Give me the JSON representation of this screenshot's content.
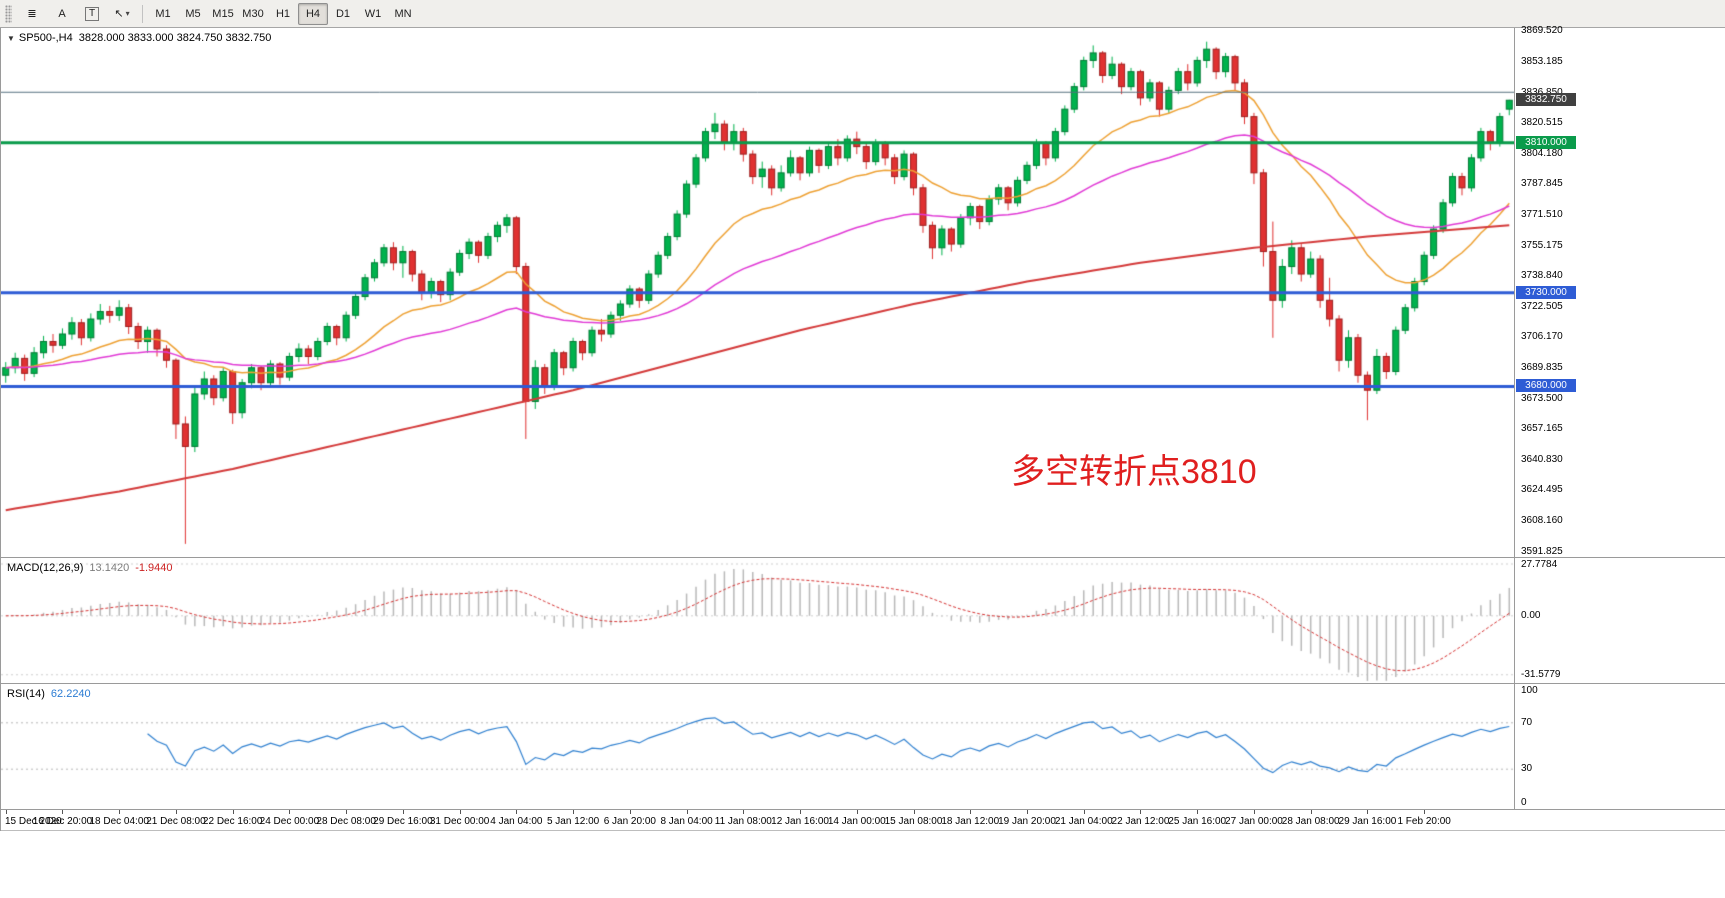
{
  "toolbar": {
    "tools": [
      {
        "id": "chart-list",
        "icon": "list-icon",
        "glyph": "≣"
      },
      {
        "id": "cursor",
        "icon": "cursor-a-icon",
        "glyph": "A"
      },
      {
        "id": "text",
        "icon": "text-box-icon",
        "glyph": "T",
        "boxed": true
      },
      {
        "id": "arrow-tool",
        "icon": "arrow-tool-icon",
        "glyph": "↖",
        "caret": "▾"
      }
    ],
    "timeframes": [
      "M1",
      "M5",
      "M15",
      "M30",
      "H1",
      "H4",
      "D1",
      "W1",
      "MN"
    ],
    "active_timeframe": "H4"
  },
  "main_panel": {
    "collapse_icon": "▼",
    "symbol_label": "SP500-,H4",
    "ohlc": "3828.000 3833.000 3824.750 3832.750",
    "annotation": {
      "text": "多空转折点3810",
      "color": "#e01f1f"
    }
  },
  "macd_panel": {
    "name": "MACD(12,26,9)",
    "main_value": "13.1420",
    "signal_value": "-1.9440"
  },
  "rsi_panel": {
    "name": "RSI(14)",
    "value": "62.2240"
  },
  "chart_data": {
    "type": "candlestick",
    "symbol": "SP500-",
    "timeframe": "H4",
    "current_bar": {
      "open": 3828.0,
      "high": 3833.0,
      "low": 3824.75,
      "close": 3832.75
    },
    "up_color": "#00b24d",
    "down_color": "#e03131",
    "y_axis": {
      "min": 3589.0,
      "max": 3871.3,
      "tick_labels": [
        "3869.520",
        "3853.185",
        "3836.850",
        "3820.515",
        "3804.180",
        "3787.845",
        "3771.510",
        "3755.175",
        "3738.840",
        "3722.505",
        "3706.170",
        "3689.835",
        "3673.500",
        "3657.165",
        "3640.830",
        "3624.495",
        "3608.160",
        "3591.825"
      ],
      "tick_values": [
        3869.52,
        3853.185,
        3836.85,
        3820.515,
        3804.18,
        3787.845,
        3771.51,
        3755.175,
        3738.84,
        3722.505,
        3706.17,
        3689.835,
        3673.5,
        3657.165,
        3640.83,
        3624.495,
        3608.16,
        3591.825
      ]
    },
    "x_labels": [
      "15 Dec 2020",
      "16 Dec 20:00",
      "18 Dec 04:00",
      "21 Dec 08:00",
      "22 Dec 16:00",
      "24 Dec 00:00",
      "28 Dec 08:00",
      "29 Dec 16:00",
      "31 Dec 00:00",
      "4 Jan 04:00",
      "5 Jan 12:00",
      "6 Jan 20:00",
      "8 Jan 04:00",
      "11 Jan 08:00",
      "12 Jan 16:00",
      "14 Jan 00:00",
      "15 Jan 08:00",
      "18 Jan 12:00",
      "19 Jan 20:00",
      "21 Jan 04:00",
      "22 Jan 12:00",
      "25 Jan 16:00",
      "27 Jan 00:00",
      "28 Jan 08:00",
      "29 Jan 16:00",
      "1 Feb 20:00"
    ],
    "x_label_every": 6,
    "candles": [
      [
        3686,
        3693,
        3682,
        3690
      ],
      [
        3690,
        3698,
        3687,
        3695
      ],
      [
        3695,
        3697,
        3683,
        3687
      ],
      [
        3687,
        3701,
        3685,
        3698
      ],
      [
        3698,
        3707,
        3695,
        3704
      ],
      [
        3704,
        3708,
        3698,
        3702
      ],
      [
        3702,
        3711,
        3700,
        3708
      ],
      [
        3708,
        3717,
        3705,
        3714
      ],
      [
        3714,
        3716,
        3702,
        3706
      ],
      [
        3706,
        3719,
        3704,
        3716
      ],
      [
        3716,
        3724,
        3713,
        3720
      ],
      [
        3720,
        3723,
        3714,
        3718
      ],
      [
        3718,
        3726,
        3715,
        3722
      ],
      [
        3722,
        3724,
        3708,
        3712
      ],
      [
        3712,
        3714,
        3700,
        3704
      ],
      [
        3704,
        3712,
        3698,
        3710
      ],
      [
        3710,
        3711,
        3696,
        3700
      ],
      [
        3700,
        3702,
        3690,
        3694
      ],
      [
        3694,
        3695,
        3652,
        3660
      ],
      [
        3660,
        3664,
        3596,
        3648
      ],
      [
        3648,
        3680,
        3645,
        3676
      ],
      [
        3676,
        3688,
        3673,
        3684
      ],
      [
        3684,
        3686,
        3670,
        3674
      ],
      [
        3674,
        3690,
        3672,
        3688
      ],
      [
        3688,
        3689,
        3660,
        3666
      ],
      [
        3666,
        3684,
        3663,
        3682
      ],
      [
        3682,
        3692,
        3679,
        3690
      ],
      [
        3690,
        3691,
        3678,
        3682
      ],
      [
        3682,
        3694,
        3680,
        3692
      ],
      [
        3692,
        3693,
        3681,
        3685
      ],
      [
        3685,
        3698,
        3683,
        3696
      ],
      [
        3696,
        3703,
        3693,
        3700
      ],
      [
        3700,
        3702,
        3692,
        3696
      ],
      [
        3696,
        3706,
        3694,
        3704
      ],
      [
        3704,
        3714,
        3702,
        3712
      ],
      [
        3712,
        3713,
        3702,
        3706
      ],
      [
        3706,
        3720,
        3704,
        3718
      ],
      [
        3718,
        3730,
        3716,
        3728
      ],
      [
        3728,
        3740,
        3726,
        3738
      ],
      [
        3738,
        3748,
        3736,
        3746
      ],
      [
        3746,
        3756,
        3744,
        3754
      ],
      [
        3754,
        3757,
        3742,
        3746
      ],
      [
        3746,
        3755,
        3738,
        3752
      ],
      [
        3752,
        3753,
        3736,
        3740
      ],
      [
        3740,
        3742,
        3726,
        3730
      ],
      [
        3730,
        3738,
        3727,
        3736
      ],
      [
        3736,
        3737,
        3725,
        3729
      ],
      [
        3729,
        3743,
        3726,
        3741
      ],
      [
        3741,
        3753,
        3739,
        3751
      ],
      [
        3751,
        3759,
        3748,
        3757
      ],
      [
        3757,
        3758,
        3746,
        3750
      ],
      [
        3750,
        3762,
        3748,
        3760
      ],
      [
        3760,
        3768,
        3757,
        3766
      ],
      [
        3766,
        3772,
        3762,
        3770
      ],
      [
        3770,
        3771,
        3740,
        3744
      ],
      [
        3744,
        3746,
        3652,
        3672
      ],
      [
        3672,
        3694,
        3668,
        3690
      ],
      [
        3690,
        3692,
        3676,
        3680
      ],
      [
        3680,
        3700,
        3678,
        3698
      ],
      [
        3698,
        3699,
        3686,
        3690
      ],
      [
        3690,
        3706,
        3688,
        3704
      ],
      [
        3704,
        3705,
        3694,
        3698
      ],
      [
        3698,
        3712,
        3696,
        3710
      ],
      [
        3710,
        3716,
        3704,
        3708
      ],
      [
        3708,
        3720,
        3706,
        3718
      ],
      [
        3718,
        3726,
        3715,
        3724
      ],
      [
        3724,
        3734,
        3722,
        3732
      ],
      [
        3732,
        3733,
        3722,
        3726
      ],
      [
        3726,
        3742,
        3724,
        3740
      ],
      [
        3740,
        3752,
        3738,
        3750
      ],
      [
        3750,
        3762,
        3748,
        3760
      ],
      [
        3760,
        3774,
        3758,
        3772
      ],
      [
        3772,
        3790,
        3770,
        3788
      ],
      [
        3788,
        3804,
        3786,
        3802
      ],
      [
        3802,
        3818,
        3800,
        3816
      ],
      [
        3816,
        3826,
        3812,
        3820
      ],
      [
        3820,
        3822,
        3806,
        3810
      ],
      [
        3810,
        3820,
        3806,
        3816
      ],
      [
        3816,
        3818,
        3800,
        3804
      ],
      [
        3804,
        3806,
        3788,
        3792
      ],
      [
        3792,
        3800,
        3786,
        3796
      ],
      [
        3796,
        3798,
        3782,
        3786
      ],
      [
        3786,
        3798,
        3784,
        3794
      ],
      [
        3794,
        3806,
        3792,
        3802
      ],
      [
        3802,
        3803,
        3790,
        3794
      ],
      [
        3794,
        3808,
        3792,
        3806
      ],
      [
        3806,
        3807,
        3794,
        3798
      ],
      [
        3798,
        3810,
        3796,
        3808
      ],
      [
        3808,
        3812,
        3798,
        3802
      ],
      [
        3802,
        3814,
        3800,
        3812
      ],
      [
        3812,
        3816,
        3804,
        3808
      ],
      [
        3808,
        3810,
        3796,
        3800
      ],
      [
        3800,
        3812,
        3798,
        3810
      ],
      [
        3810,
        3811,
        3798,
        3802
      ],
      [
        3802,
        3804,
        3788,
        3792
      ],
      [
        3792,
        3806,
        3790,
        3804
      ],
      [
        3804,
        3805,
        3782,
        3786
      ],
      [
        3786,
        3788,
        3762,
        3766
      ],
      [
        3766,
        3768,
        3748,
        3754
      ],
      [
        3754,
        3766,
        3750,
        3764
      ],
      [
        3764,
        3765,
        3752,
        3756
      ],
      [
        3756,
        3772,
        3754,
        3770
      ],
      [
        3770,
        3778,
        3766,
        3776
      ],
      [
        3776,
        3777,
        3764,
        3768
      ],
      [
        3768,
        3782,
        3766,
        3780
      ],
      [
        3780,
        3788,
        3777,
        3786
      ],
      [
        3786,
        3787,
        3774,
        3778
      ],
      [
        3778,
        3792,
        3776,
        3790
      ],
      [
        3790,
        3800,
        3788,
        3798
      ],
      [
        3798,
        3812,
        3796,
        3810
      ],
      [
        3810,
        3811,
        3798,
        3802
      ],
      [
        3802,
        3818,
        3800,
        3816
      ],
      [
        3816,
        3830,
        3814,
        3828
      ],
      [
        3828,
        3842,
        3826,
        3840
      ],
      [
        3840,
        3856,
        3838,
        3854
      ],
      [
        3854,
        3862,
        3850,
        3858
      ],
      [
        3858,
        3859,
        3842,
        3846
      ],
      [
        3846,
        3856,
        3844,
        3852
      ],
      [
        3852,
        3853,
        3836,
        3840
      ],
      [
        3840,
        3850,
        3838,
        3848
      ],
      [
        3848,
        3849,
        3830,
        3834
      ],
      [
        3834,
        3844,
        3832,
        3842
      ],
      [
        3842,
        3843,
        3824,
        3828
      ],
      [
        3828,
        3840,
        3826,
        3838
      ],
      [
        3838,
        3850,
        3836,
        3848
      ],
      [
        3848,
        3852,
        3838,
        3842
      ],
      [
        3842,
        3856,
        3840,
        3854
      ],
      [
        3854,
        3864,
        3850,
        3860
      ],
      [
        3860,
        3861,
        3844,
        3848
      ],
      [
        3848,
        3858,
        3845,
        3856
      ],
      [
        3856,
        3857,
        3838,
        3842
      ],
      [
        3842,
        3844,
        3820,
        3824
      ],
      [
        3824,
        3826,
        3788,
        3794
      ],
      [
        3794,
        3796,
        3744,
        3752
      ],
      [
        3752,
        3768,
        3706,
        3726
      ],
      [
        3726,
        3748,
        3722,
        3744
      ],
      [
        3744,
        3758,
        3740,
        3754
      ],
      [
        3754,
        3756,
        3736,
        3740
      ],
      [
        3740,
        3752,
        3738,
        3748
      ],
      [
        3748,
        3750,
        3722,
        3726
      ],
      [
        3726,
        3738,
        3712,
        3716
      ],
      [
        3716,
        3718,
        3688,
        3694
      ],
      [
        3694,
        3710,
        3690,
        3706
      ],
      [
        3706,
        3708,
        3682,
        3686
      ],
      [
        3686,
        3688,
        3662,
        3678
      ],
      [
        3678,
        3700,
        3676,
        3696
      ],
      [
        3696,
        3698,
        3684,
        3688
      ],
      [
        3688,
        3712,
        3686,
        3710
      ],
      [
        3710,
        3724,
        3708,
        3722
      ],
      [
        3722,
        3738,
        3720,
        3736
      ],
      [
        3736,
        3752,
        3734,
        3750
      ],
      [
        3750,
        3766,
        3748,
        3764
      ],
      [
        3764,
        3780,
        3762,
        3778
      ],
      [
        3778,
        3794,
        3776,
        3792
      ],
      [
        3792,
        3794,
        3782,
        3786
      ],
      [
        3786,
        3804,
        3784,
        3802
      ],
      [
        3802,
        3818,
        3800,
        3816
      ],
      [
        3816,
        3817,
        3806,
        3810
      ],
      [
        3810,
        3826,
        3808,
        3824
      ],
      [
        3828,
        3833,
        3824.75,
        3832.75
      ]
    ],
    "horizontal_lines": [
      {
        "price": 3837.0,
        "color": "#56707f",
        "width": 1,
        "label": null
      },
      {
        "price": 3810.0,
        "color": "#0a9b4b",
        "width": 3,
        "label": "3810.000"
      },
      {
        "price": 3730.0,
        "color": "#2e5cd5",
        "width": 3,
        "label": "3730.000"
      },
      {
        "price": 3680.0,
        "color": "#2e5cd5",
        "width": 3,
        "label": "3680.000"
      }
    ],
    "price_marker": {
      "label": "3832.750",
      "price": 3832.75,
      "bg": "#404040"
    },
    "moving_averages": [
      {
        "name": "fast",
        "type": "ema",
        "period": 20,
        "color": "#eea133"
      },
      {
        "name": "medium",
        "type": "ema",
        "period": 50,
        "color": "#e13ad6"
      },
      {
        "name": "slow",
        "type": "points",
        "color": "#d43a3a",
        "points": [
          [
            0,
            3614
          ],
          [
            12,
            3624
          ],
          [
            24,
            3636
          ],
          [
            36,
            3650
          ],
          [
            48,
            3664
          ],
          [
            60,
            3678
          ],
          [
            72,
            3694
          ],
          [
            84,
            3710
          ],
          [
            96,
            3724
          ],
          [
            108,
            3736
          ],
          [
            120,
            3746
          ],
          [
            132,
            3754
          ],
          [
            144,
            3760
          ],
          [
            159,
            3766
          ]
        ]
      }
    ],
    "indicators": [
      {
        "name": "MACD",
        "params": [
          12,
          26,
          9
        ],
        "display_values": [
          "13.1420",
          "-1.9440"
        ],
        "axis": {
          "labels": [
            "27.7784",
            "0.00",
            "-31.5779"
          ],
          "values": [
            27.7784,
            0,
            -31.5779
          ],
          "min": -36,
          "max": 31
        },
        "histogram_color": "#b9b9b9",
        "signal_color": "#d63333"
      },
      {
        "name": "RSI",
        "params": [
          14
        ],
        "display_value": "62.2240",
        "axis": {
          "labels": [
            "100",
            "70",
            "30",
            "0"
          ],
          "values": [
            100,
            70,
            30,
            0
          ],
          "min": 0,
          "max": 100
        },
        "levels": [
          70,
          30
        ],
        "line_color": "#2f80d0"
      }
    ]
  }
}
